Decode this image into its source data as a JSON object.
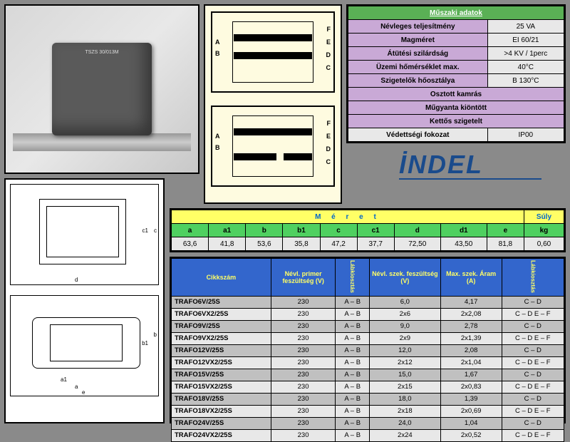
{
  "spec": {
    "title": "Műszaki adatok",
    "rows": [
      {
        "label": "Névleges teljesítmény",
        "value": "25 VA"
      },
      {
        "label": "Magméret",
        "value": "EI 60/21"
      },
      {
        "label": "Átütési szilárdság",
        "value": ">4 KV / 1perc"
      },
      {
        "label": "Üzemi hőmérséklet max.",
        "value": "40°C"
      },
      {
        "label": "Szigetelők hőosztálya",
        "value": "B 130°C"
      }
    ],
    "fullrows": [
      "Osztott kamrás",
      "Műgyanta kiöntött",
      "Kettős szigetelt"
    ],
    "lastrow": {
      "label": "Védettségi fokozat",
      "value": "IP00"
    }
  },
  "logo": "İNDEL",
  "product_label": "TSZS 30/013M",
  "diagram_labels": {
    "A": "A",
    "B": "B",
    "C": "C",
    "D": "D",
    "E": "E",
    "F": "F"
  },
  "meret": {
    "title": "M é r e t",
    "suly": "Súly",
    "headers": [
      "a",
      "a1",
      "b",
      "b1",
      "c",
      "c1",
      "d",
      "d1",
      "e",
      "kg"
    ],
    "values": [
      "63,6",
      "41,8",
      "53,6",
      "35,8",
      "47,2",
      "37,7",
      "72,50",
      "43,50",
      "81,8",
      "0,60"
    ]
  },
  "main": {
    "headers": [
      "Cikkszám",
      "Névl. primer feszültség (V)",
      "Lábkiosztás",
      "Névl. szek. feszültség (V)",
      "Max. szek. Áram (A)",
      "Lábkiosztás"
    ],
    "col_widths": [
      "140px",
      "90px",
      "46px",
      "100px",
      "86px",
      "90px"
    ],
    "rows": [
      [
        "TRAFO6V/25S",
        "230",
        "A – B",
        "6,0",
        "4,17",
        "C – D"
      ],
      [
        "TRAFO6VX2/25S",
        "230",
        "A – B",
        "2x6",
        "2x2,08",
        "C – D E – F"
      ],
      [
        "TRAFO9V/25S",
        "230",
        "A – B",
        "9,0",
        "2,78",
        "C – D"
      ],
      [
        "TRAFO9VX2/25S",
        "230",
        "A – B",
        "2x9",
        "2x1,39",
        "C – D E – F"
      ],
      [
        "TRAFO12V/25S",
        "230",
        "A – B",
        "12,0",
        "2,08",
        "C – D"
      ],
      [
        "TRAFO12VX2/25S",
        "230",
        "A – B",
        "2x12",
        "2x1,04",
        "C – D E – F"
      ],
      [
        "TRAFO15V/25S",
        "230",
        "A – B",
        "15,0",
        "1,67",
        "C – D"
      ],
      [
        "TRAFO15VX2/25S",
        "230",
        "A – B",
        "2x15",
        "2x0,83",
        "C – D E – F"
      ],
      [
        "TRAFO18V/25S",
        "230",
        "A – B",
        "18,0",
        "1,39",
        "C – D"
      ],
      [
        "TRAFO18VX2/25S",
        "230",
        "A – B",
        "2x18",
        "2x0,69",
        "C – D E – F"
      ],
      [
        "TRAFO24V/25S",
        "230",
        "A – B",
        "24,0",
        "1,04",
        "C – D"
      ],
      [
        "TRAFO24VX2/25S",
        "230",
        "A – B",
        "2x24",
        "2x0,52",
        "C – D E – F"
      ]
    ]
  },
  "dim_labels": {
    "a": "a",
    "a1": "a1",
    "b": "b",
    "b1": "b1",
    "c": "c",
    "c1": "c1",
    "d": "d",
    "e": "e"
  }
}
